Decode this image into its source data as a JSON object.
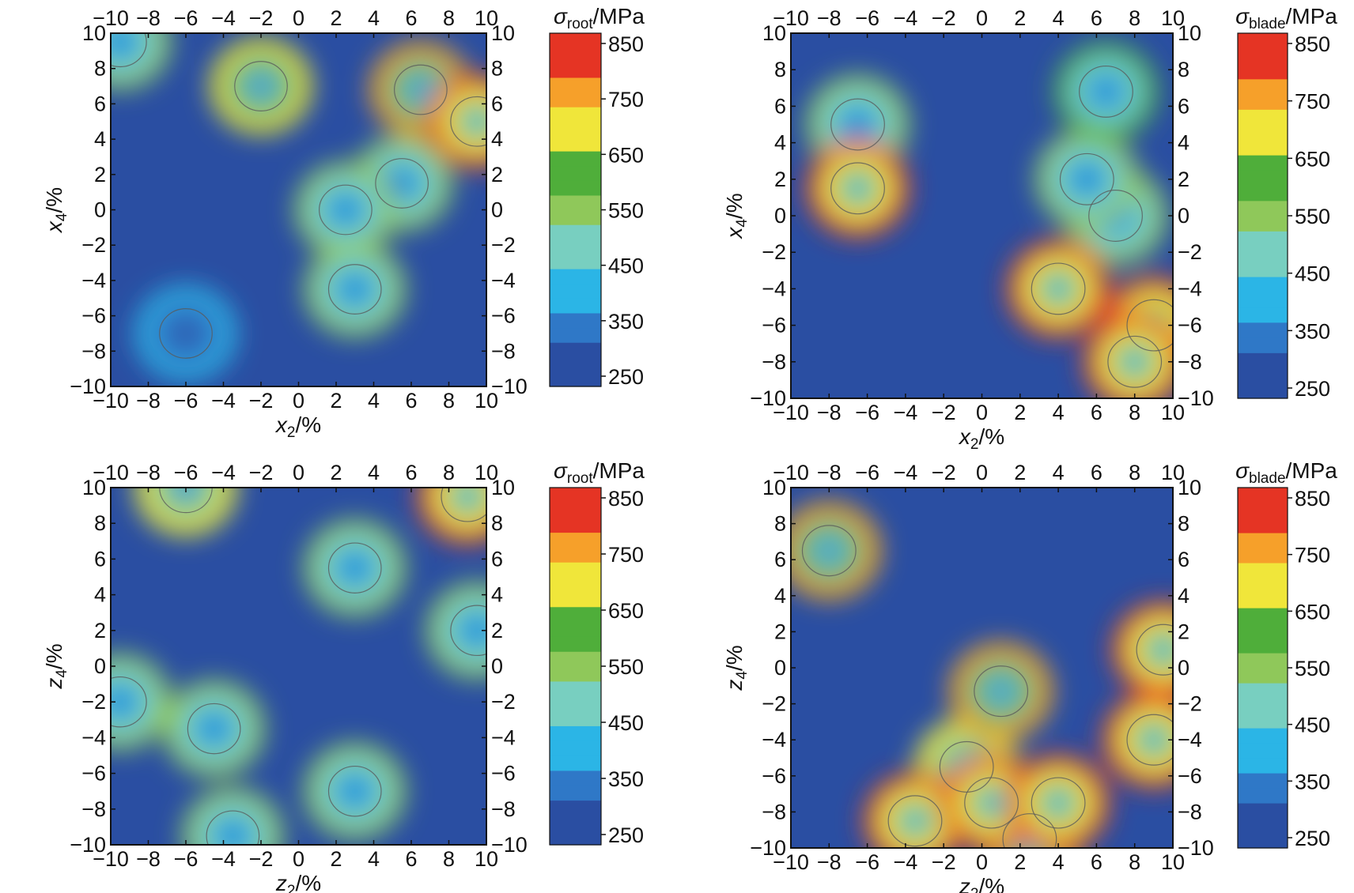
{
  "colors": {
    "scale": [
      "#2a4ea2",
      "#2f78c7",
      "#2bb5e6",
      "#78cfc0",
      "#8fc85a",
      "#4fae3a",
      "#f0e63a",
      "#f6a02a",
      "#e53424"
    ],
    "frame": "#111111",
    "contour": "#5a5a5a"
  },
  "chart_data": [
    {
      "type": "heatmap",
      "panel": "top-left",
      "xlabel": {
        "main": "x",
        "sub": "2",
        "unit": "/%"
      },
      "ylabel": {
        "main": "x",
        "sub": "4",
        "unit": "/%"
      },
      "xlim": [
        -10,
        10
      ],
      "ylim": [
        -10,
        10
      ],
      "ticks": [
        "−10",
        "−8",
        "−6",
        "−4",
        "−2",
        "0",
        "2",
        "4",
        "6",
        "8",
        "10"
      ],
      "colorbar": {
        "title": {
          "sym": "σ",
          "sub": "root",
          "unit": "/MPa"
        },
        "range": [
          250,
          850
        ],
        "tick_labels": [
          "850",
          "750",
          "650",
          "550",
          "450",
          "350",
          "250"
        ]
      },
      "hotspots": [
        {
          "x": 9.5,
          "y": 5.0,
          "value": 850
        },
        {
          "x": 6.5,
          "y": 6.8,
          "value": 780
        },
        {
          "x": -2.0,
          "y": 7.0,
          "value": 700
        },
        {
          "x": 2.5,
          "y": 0.0,
          "value": 560
        },
        {
          "x": 5.5,
          "y": 1.5,
          "value": 540
        },
        {
          "x": 3.0,
          "y": -4.5,
          "value": 560
        },
        {
          "x": -6.0,
          "y": -7.0,
          "value": 420
        },
        {
          "x": -9.5,
          "y": 9.5,
          "value": 560
        }
      ]
    },
    {
      "type": "heatmap",
      "panel": "top-right",
      "xlabel": {
        "main": "x",
        "sub": "2",
        "unit": "/%"
      },
      "ylabel": {
        "main": "x",
        "sub": "4",
        "unit": "/%"
      },
      "xlim": [
        -10,
        10
      ],
      "ylim": [
        -10,
        10
      ],
      "ticks": [
        "−10",
        "−8",
        "−6",
        "−4",
        "−2",
        "0",
        "2",
        "4",
        "6",
        "8",
        "10"
      ],
      "colorbar": {
        "title": {
          "sym": "σ",
          "sub": "blade",
          "unit": "/MPa"
        },
        "range": [
          250,
          850
        ],
        "tick_labels": [
          "850",
          "750",
          "650",
          "550",
          "450",
          "350",
          "250"
        ]
      },
      "hotspots": [
        {
          "x": 4.0,
          "y": -4.0,
          "value": 850
        },
        {
          "x": 9.0,
          "y": -6.0,
          "value": 850
        },
        {
          "x": 8.0,
          "y": -8.0,
          "value": 850
        },
        {
          "x": -6.5,
          "y": 1.5,
          "value": 830
        },
        {
          "x": 6.5,
          "y": 6.8,
          "value": 600
        },
        {
          "x": -6.5,
          "y": 5.0,
          "value": 560
        },
        {
          "x": 5.5,
          "y": 2.0,
          "value": 560
        },
        {
          "x": 7.0,
          "y": 0.0,
          "value": 520
        }
      ]
    },
    {
      "type": "heatmap",
      "panel": "bottom-left",
      "xlabel": {
        "main": "z",
        "sub": "2",
        "unit": "/%"
      },
      "ylabel": {
        "main": "z",
        "sub": "4",
        "unit": "/%"
      },
      "xlim": [
        -10,
        10
      ],
      "ylim": [
        -10,
        10
      ],
      "ticks": [
        "−10",
        "−8",
        "−6",
        "−4",
        "−2",
        "0",
        "2",
        "4",
        "6",
        "8",
        "10"
      ],
      "colorbar": {
        "title": {
          "sym": "σ",
          "sub": "root",
          "unit": "/MPa"
        },
        "range": [
          250,
          850
        ],
        "tick_labels": [
          "850",
          "750",
          "650",
          "550",
          "450",
          "350",
          "250"
        ]
      },
      "hotspots": [
        {
          "x": 9.0,
          "y": 9.5,
          "value": 850
        },
        {
          "x": -6.0,
          "y": 10.0,
          "value": 680
        },
        {
          "x": 9.5,
          "y": 2.0,
          "value": 560
        },
        {
          "x": 3.0,
          "y": 5.5,
          "value": 580
        },
        {
          "x": -4.5,
          "y": -3.5,
          "value": 560
        },
        {
          "x": 3.0,
          "y": -7.0,
          "value": 520
        },
        {
          "x": -9.5,
          "y": -2.0,
          "value": 520
        },
        {
          "x": -3.5,
          "y": -9.5,
          "value": 560
        }
      ]
    },
    {
      "type": "heatmap",
      "panel": "bottom-right",
      "xlabel": {
        "main": "z",
        "sub": "2",
        "unit": "/%"
      },
      "ylabel": {
        "main": "z",
        "sub": "4",
        "unit": "/%"
      },
      "xlim": [
        -10,
        10
      ],
      "ylim": [
        -10,
        10
      ],
      "ticks": [
        "−10",
        "−8",
        "−6",
        "−4",
        "−2",
        "0",
        "2",
        "4",
        "6",
        "8",
        "10"
      ],
      "colorbar": {
        "title": {
          "sym": "σ",
          "sub": "blade",
          "unit": "/MPa"
        },
        "range": [
          250,
          850
        ],
        "tick_labels": [
          "850",
          "750",
          "650",
          "550",
          "450",
          "350",
          "250"
        ]
      },
      "hotspots": [
        {
          "x": 9.0,
          "y": -4.0,
          "value": 850
        },
        {
          "x": 9.5,
          "y": 1.0,
          "value": 800
        },
        {
          "x": 4.0,
          "y": -7.5,
          "value": 850
        },
        {
          "x": 0.5,
          "y": -7.5,
          "value": 840
        },
        {
          "x": -3.5,
          "y": -8.5,
          "value": 800
        },
        {
          "x": 1.0,
          "y": -1.3,
          "value": 720
        },
        {
          "x": -8.0,
          "y": 6.5,
          "value": 760
        },
        {
          "x": 2.5,
          "y": -9.5,
          "value": 740
        },
        {
          "x": -0.8,
          "y": -5.5,
          "value": 650
        }
      ]
    }
  ]
}
